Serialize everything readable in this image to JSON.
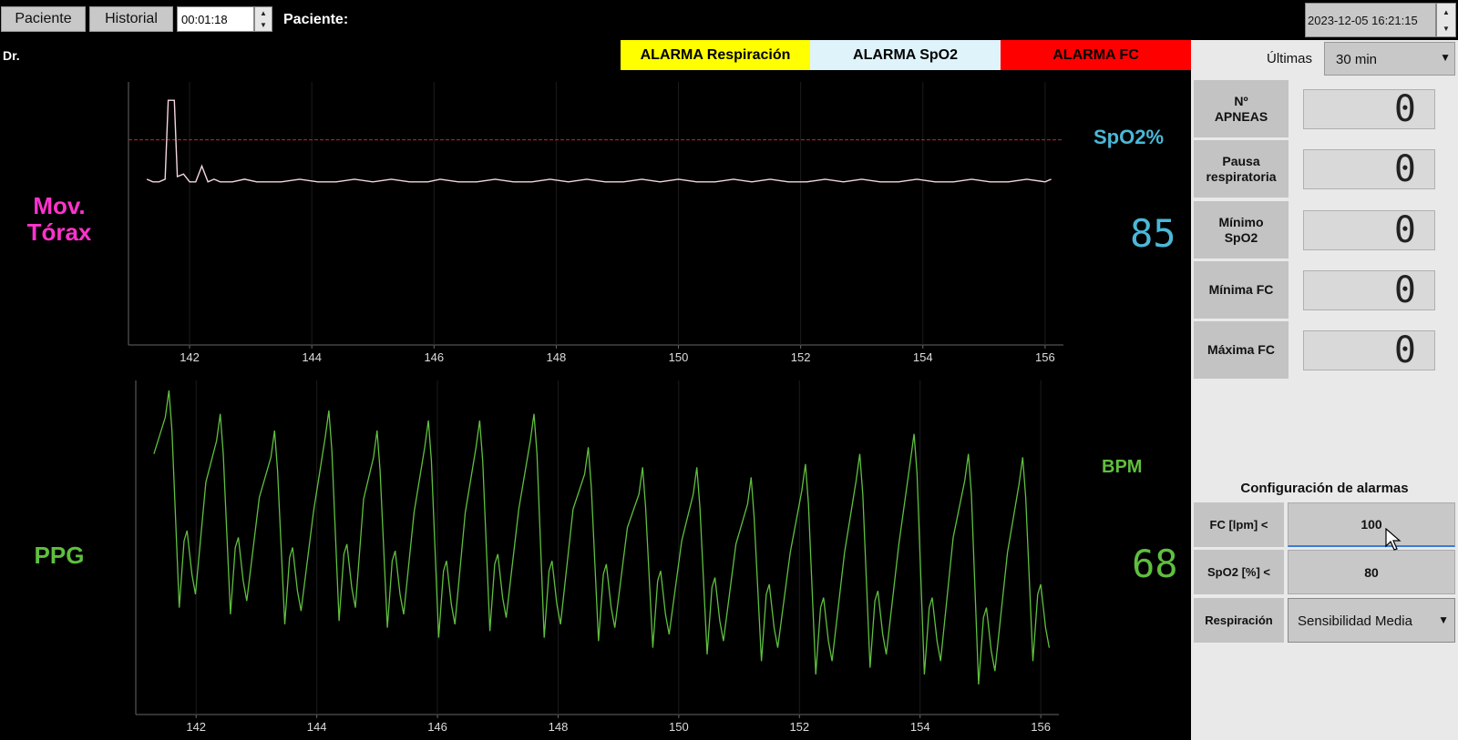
{
  "toolbar": {
    "patient_button": "Paciente",
    "history_button": "Historial",
    "timer_value": "00:01:18",
    "patient_label": "Paciente:",
    "doctor_label": "Dr.",
    "datetime": "2023-12-05 16:21:15"
  },
  "alarms": [
    {
      "label": "ALARMA Respiración",
      "bg": "#ffff00",
      "fg": "#000000"
    },
    {
      "label": "ALARMA SpO2",
      "bg": "#dff3fa",
      "fg": "#000000"
    },
    {
      "label": "ALARMA FC",
      "bg": "#ff0000",
      "fg": "#000000"
    }
  ],
  "monitor": {
    "thorax_label_1": "Mov.",
    "thorax_label_2": "Tórax",
    "ppg_label": "PPG",
    "spo2_title": "SpO2%",
    "spo2_value": "85",
    "bpm_title": "BPM",
    "bpm_value": "68",
    "colors": {
      "thorax": "#ff33cc",
      "spo2": "#4ab8d8",
      "ppg": "#5fbf3f",
      "threshold": "#cc2222"
    }
  },
  "side": {
    "last_label": "Últimas",
    "last_value": "30 min",
    "stats": [
      {
        "label": "Nº\nAPNEAS",
        "value": "0"
      },
      {
        "label": "Pausa\nrespiratoria",
        "value": "0"
      },
      {
        "label": "Mínimo\nSpO2",
        "value": "0"
      },
      {
        "label": "Mínima FC",
        "value": "0"
      },
      {
        "label": "Máxima FC",
        "value": "0"
      }
    ],
    "config_title": "Configuración de alarmas",
    "config": {
      "fc_label": "FC [lpm] <",
      "fc_value": "100",
      "spo2_label": "SpO2 [%] <",
      "spo2_value": "80",
      "resp_label": "Respiración",
      "resp_value": "Sensibilidad Media"
    }
  },
  "chart_data": [
    {
      "type": "line",
      "title": "",
      "xlabel": "",
      "ylabel": "",
      "xlim": [
        141,
        156.3
      ],
      "ylim": [
        0,
        1
      ],
      "xticks": [
        142,
        144,
        146,
        148,
        150,
        152,
        154,
        156
      ],
      "threshold": 0.78,
      "series": [
        {
          "x": [
            141.3,
            141.4,
            141.5,
            141.6,
            141.65,
            141.75,
            141.8,
            141.9,
            142.0,
            142.1,
            142.2,
            142.3,
            142.4,
            142.5,
            142.7,
            142.9,
            143.1,
            143.3,
            143.5,
            143.8,
            144.1,
            144.4,
            144.7,
            145.0,
            145.3,
            145.6,
            145.9,
            146.1,
            146.4,
            146.7,
            147.0,
            147.3,
            147.6,
            147.9,
            148.2,
            148.5,
            148.8,
            149.1,
            149.4,
            149.7,
            150.0,
            150.3,
            150.6,
            150.9,
            151.2,
            151.5,
            151.8,
            152.1,
            152.4,
            152.7,
            153.0,
            153.3,
            153.6,
            153.9,
            154.2,
            154.5,
            154.8,
            155.1,
            155.4,
            155.7,
            156.0,
            156.1
          ],
          "y": [
            0.63,
            0.62,
            0.62,
            0.63,
            0.93,
            0.93,
            0.64,
            0.65,
            0.62,
            0.62,
            0.68,
            0.62,
            0.63,
            0.62,
            0.62,
            0.63,
            0.62,
            0.62,
            0.62,
            0.63,
            0.62,
            0.62,
            0.63,
            0.62,
            0.63,
            0.62,
            0.62,
            0.63,
            0.62,
            0.62,
            0.63,
            0.62,
            0.62,
            0.63,
            0.62,
            0.63,
            0.62,
            0.62,
            0.63,
            0.62,
            0.63,
            0.62,
            0.62,
            0.63,
            0.62,
            0.63,
            0.62,
            0.62,
            0.63,
            0.62,
            0.63,
            0.62,
            0.62,
            0.63,
            0.62,
            0.62,
            0.63,
            0.62,
            0.62,
            0.63,
            0.62,
            0.63
          ]
        }
      ]
    },
    {
      "type": "line",
      "title": "",
      "xlabel": "",
      "ylabel": "",
      "xlim": [
        141,
        156.3
      ],
      "ylim": [
        0,
        1
      ],
      "xticks": [
        142,
        144,
        146,
        148,
        150,
        152,
        154,
        156
      ],
      "peaks": [
        141.55,
        142.4,
        143.3,
        144.2,
        145.0,
        145.85,
        146.7,
        147.6,
        148.5,
        149.4,
        150.3,
        151.2,
        152.1,
        153.0,
        153.9,
        154.8,
        155.7
      ],
      "peak_heights": [
        0.97,
        0.9,
        0.85,
        0.91,
        0.85,
        0.88,
        0.88,
        0.9,
        0.8,
        0.74,
        0.74,
        0.71,
        0.75,
        0.78,
        0.84,
        0.78,
        0.77
      ],
      "trough_heights": [
        0.32,
        0.3,
        0.27,
        0.28,
        0.26,
        0.23,
        0.25,
        0.23,
        0.22,
        0.2,
        0.18,
        0.16,
        0.12,
        0.14,
        0.12,
        0.09,
        0.16
      ]
    }
  ]
}
